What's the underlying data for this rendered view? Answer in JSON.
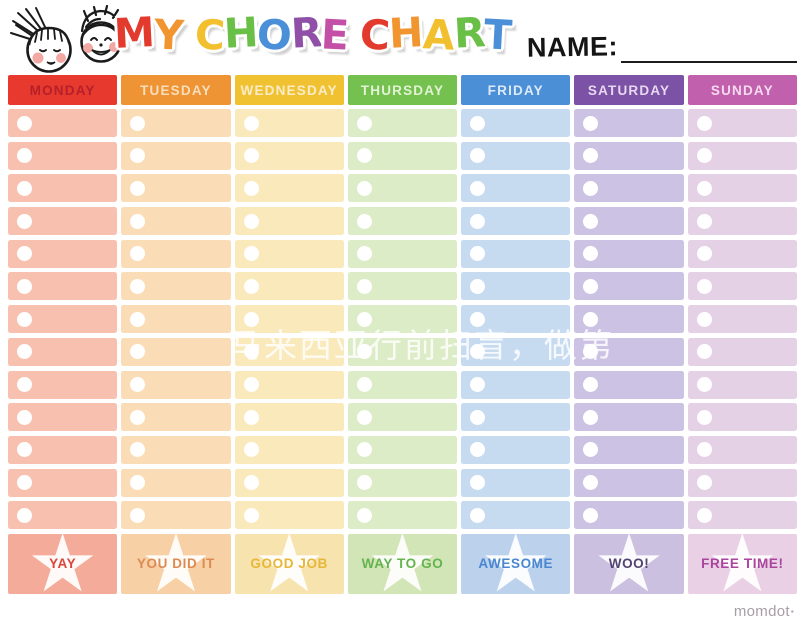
{
  "page": {
    "background": "#ffffff"
  },
  "header": {
    "logo_icon": "two-kids-faces",
    "name_label": "NAME:",
    "title_letters": [
      {
        "ch": "M",
        "color": "#e33a2e"
      },
      {
        "ch": "Y",
        "color": "#f0952f"
      },
      {
        "ch": " "
      },
      {
        "ch": "C",
        "color": "#f2c02e"
      },
      {
        "ch": "H",
        "color": "#6abf47"
      },
      {
        "ch": "O",
        "color": "#4a8fd8"
      },
      {
        "ch": "R",
        "color": "#9050a8"
      },
      {
        "ch": "E",
        "color": "#c34fa6"
      },
      {
        "ch": " "
      },
      {
        "ch": "C",
        "color": "#e33a2e"
      },
      {
        "ch": "H",
        "color": "#f0952f"
      },
      {
        "ch": "A",
        "color": "#f2c02e"
      },
      {
        "ch": "R",
        "color": "#6abf47"
      },
      {
        "ch": "T",
        "color": "#4a8fd8"
      }
    ]
  },
  "grid": {
    "rows": 13,
    "star_glyph": "★"
  },
  "days": [
    {
      "key": "monday",
      "label": "MONDAY",
      "header_bg": "#e7392d",
      "header_text": "#b5202a",
      "cell_bg": "#f8c1af",
      "footer_bg": "#f4ab9a",
      "footer_label": "YAY",
      "footer_text": "#d8463c"
    },
    {
      "key": "tuesday",
      "label": "TUESDAY",
      "header_bg": "#ef9434",
      "header_text": "#f9debc",
      "cell_bg": "#fadcb6",
      "footer_bg": "#f7d0a6",
      "footer_label": "YOU DID IT",
      "footer_text": "#dd8a52"
    },
    {
      "key": "wednesday",
      "label": "WEDNESDAY",
      "header_bg": "#f0c232",
      "header_text": "#faecc8",
      "cell_bg": "#fae9ba",
      "footer_bg": "#f7e3ae",
      "footer_label": "GOOD JOB",
      "footer_text": "#e7b739"
    },
    {
      "key": "thursday",
      "label": "THURSDAY",
      "header_bg": "#74c14f",
      "header_text": "#e2f2d4",
      "cell_bg": "#dcecc6",
      "footer_bg": "#d2e5b6",
      "footer_label": "WAY TO GO",
      "footer_text": "#64b44e"
    },
    {
      "key": "friday",
      "label": "FRIDAY",
      "header_bg": "#4b8fd7",
      "header_text": "#ddeafa",
      "cell_bg": "#c6daf0",
      "footer_bg": "#bcd1ec",
      "footer_label": "AWESOME",
      "footer_text": "#4a87d0"
    },
    {
      "key": "saturday",
      "label": "SATURDAY",
      "header_bg": "#7b52a5",
      "header_text": "#e7d8f0",
      "cell_bg": "#ccc2e4",
      "footer_bg": "#ccc0e0",
      "footer_label": "WOO!",
      "footer_text": "#514470"
    },
    {
      "key": "sunday",
      "label": "SUNDAY",
      "header_bg": "#c161ad",
      "header_text": "#f6d9ee",
      "cell_bg": "#e5d1e6",
      "footer_bg": "#e9d0e5",
      "footer_label": "FREE TIME!",
      "footer_text": "#aa459e"
    }
  ],
  "watermark": {
    "text": "马来西亚行前扫盲，做第",
    "color": "rgba(255,255,255,0.82)"
  },
  "credit": {
    "label": "momdot",
    "mark": "▪",
    "color": "#a79fa7"
  }
}
